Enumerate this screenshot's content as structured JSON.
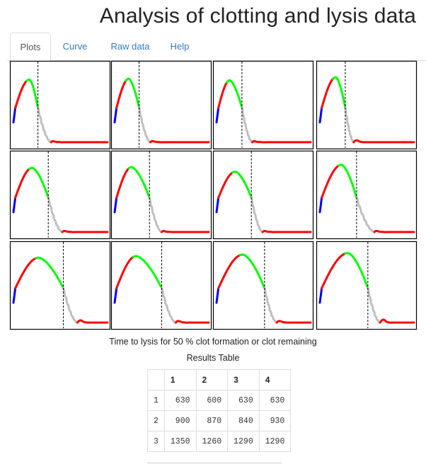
{
  "app": {
    "title": "Analysis of clotting and lysis data"
  },
  "tabs": [
    {
      "label": "Plots",
      "active": true
    },
    {
      "label": "Curve",
      "active": false
    },
    {
      "label": "Raw data",
      "active": false
    },
    {
      "label": "Help",
      "active": false
    }
  ],
  "colors": {
    "lag": "#0000ff",
    "clot_formation": "#ff0000",
    "peak": "#00ff00",
    "lysis": "#bfbfbf",
    "baseline": "#ff0000",
    "threshold_line": "#000000",
    "tab_link": "#337ab7"
  },
  "chart_data": {
    "type": "line",
    "layout": {
      "rows": 3,
      "cols": 4
    },
    "y_range": [
      0,
      1
    ],
    "time_range": [
      0,
      1
    ],
    "panels": [
      {
        "peak_time": 0.17,
        "peak_height": 0.82,
        "lysis_time": 0.26,
        "lysis_end": 0.4,
        "bump": 0.01
      },
      {
        "peak_time": 0.15,
        "peak_height": 0.83,
        "lysis_time": 0.26,
        "lysis_end": 0.38,
        "bump": 0.012
      },
      {
        "peak_time": 0.14,
        "peak_height": 0.81,
        "lysis_time": 0.27,
        "lysis_end": 0.38,
        "bump": 0.01
      },
      {
        "peak_time": 0.17,
        "peak_height": 0.85,
        "lysis_time": 0.27,
        "lysis_end": 0.36,
        "bump": 0.025
      },
      {
        "peak_time": 0.2,
        "peak_height": 0.84,
        "lysis_time": 0.37,
        "lysis_end": 0.52,
        "bump": 0.012
      },
      {
        "peak_time": 0.18,
        "peak_height": 0.85,
        "lysis_time": 0.37,
        "lysis_end": 0.5,
        "bump": 0.01
      },
      {
        "peak_time": 0.2,
        "peak_height": 0.79,
        "lysis_time": 0.37,
        "lysis_end": 0.49,
        "bump": 0.01
      },
      {
        "peak_time": 0.23,
        "peak_height": 0.88,
        "lysis_time": 0.39,
        "lysis_end": 0.58,
        "bump": 0.012
      },
      {
        "peak_time": 0.27,
        "peak_height": 0.85,
        "lysis_time": 0.53,
        "lysis_end": 0.68,
        "bump": 0.03
      },
      {
        "peak_time": 0.23,
        "peak_height": 0.87,
        "lysis_time": 0.5,
        "lysis_end": 0.65,
        "bump": 0.02
      },
      {
        "peak_time": 0.28,
        "peak_height": 0.89,
        "lysis_time": 0.51,
        "lysis_end": 0.64,
        "bump": 0.02
      },
      {
        "peak_time": 0.3,
        "peak_height": 0.91,
        "lysis_time": 0.51,
        "lysis_end": 0.64,
        "bump": 0.04
      }
    ]
  },
  "caption": "Time to lysis for 50 % clot formation or clot remaining",
  "results": {
    "title": "Results Table",
    "corner": "",
    "columns": [
      "1",
      "2",
      "3",
      "4"
    ],
    "rows": [
      {
        "name": "1",
        "values": [
          "630",
          "600",
          "630",
          "630"
        ]
      },
      {
        "name": "2",
        "values": [
          "900",
          "870",
          "840",
          "930"
        ]
      },
      {
        "name": "3",
        "values": [
          "1350",
          "1260",
          "1290",
          "1290"
        ]
      }
    ]
  }
}
